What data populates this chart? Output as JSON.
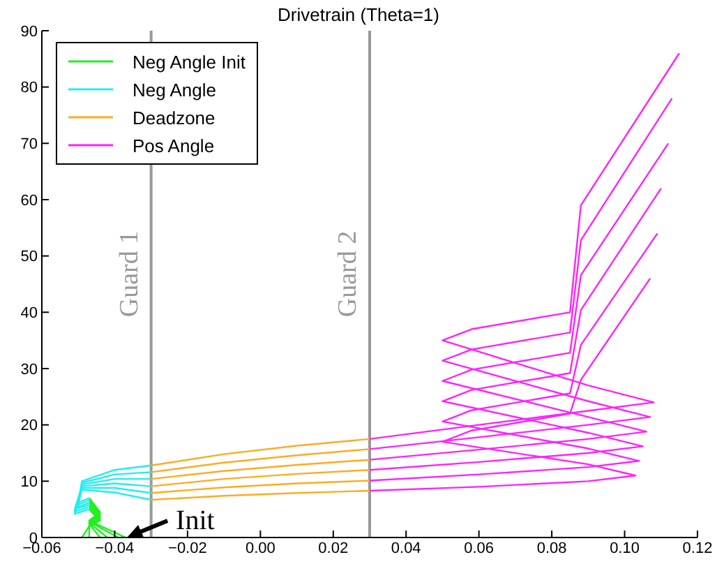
{
  "chart_data": {
    "type": "line",
    "title": "Drivetrain (Theta=1)",
    "xlim": [
      -0.06,
      0.12
    ],
    "xticks": [
      {
        "value": -0.06,
        "label": "−0.06"
      },
      {
        "value": -0.04,
        "label": "−0.04"
      },
      {
        "value": -0.02,
        "label": "−0.02"
      },
      {
        "value": 0,
        "label": "0.00"
      },
      {
        "value": 0.02,
        "label": "0.02"
      },
      {
        "value": 0.04,
        "label": "0.04"
      },
      {
        "value": 0.06,
        "label": "0.06"
      },
      {
        "value": 0.08,
        "label": "0.08"
      },
      {
        "value": 0.1,
        "label": "0.10"
      },
      {
        "value": 0.12,
        "label": "0.12"
      }
    ],
    "ylim": [
      0,
      90
    ],
    "yticks": [
      0,
      10,
      20,
      30,
      40,
      50,
      60,
      70,
      80,
      90
    ],
    "grid": false,
    "legend": "top left",
    "marker": "none",
    "line_style": "solid",
    "ref_lines": [
      {
        "axis": "x",
        "value": -0.03,
        "label": "Guard 1",
        "color": "#999999"
      },
      {
        "axis": "x",
        "value": 0.03,
        "label": "Guard 2",
        "color": "#999999"
      }
    ],
    "annotations": [
      {
        "text": "Init",
        "x": -0.037,
        "y": 0
      }
    ],
    "series": [
      {
        "name": "Neg Angle Init",
        "color": "#22ee22",
        "x": [
          -0.049,
          -0.047,
          -0.044,
          -0.047
        ],
        "values": [
          0,
          2,
          3,
          5
        ]
      },
      {
        "color": "#22ee22",
        "x": [
          -0.047,
          -0.047,
          -0.044,
          -0.047
        ],
        "values": [
          0,
          2.2,
          3.3,
          5.4
        ]
      },
      {
        "color": "#22ee22",
        "x": [
          -0.044,
          -0.047,
          -0.044,
          -0.047
        ],
        "values": [
          0,
          2.4,
          3.6,
          5.8
        ]
      },
      {
        "color": "#22ee22",
        "x": [
          -0.042,
          -0.047,
          -0.044,
          -0.047
        ],
        "values": [
          0,
          2.6,
          3.9,
          6.2
        ]
      },
      {
        "color": "#22ee22",
        "x": [
          -0.039,
          -0.047,
          -0.044,
          -0.047
        ],
        "values": [
          0,
          2.8,
          4.2,
          6.6
        ]
      },
      {
        "color": "#22ee22",
        "x": [
          -0.037,
          -0.047,
          -0.044,
          -0.047
        ],
        "values": [
          0,
          3,
          4.5,
          7
        ]
      },
      {
        "name": "Neg Angle",
        "color": "#22eeee",
        "x": [
          -0.047,
          -0.051,
          -0.049,
          -0.04,
          -0.03
        ],
        "values": [
          5,
          4.2,
          8.5,
          8,
          6.7
        ]
      },
      {
        "color": "#22eeee",
        "x": [
          -0.047,
          -0.051,
          -0.049,
          -0.04,
          -0.03
        ],
        "values": [
          5.4,
          4.6,
          8.8,
          8.8,
          7.9
        ]
      },
      {
        "color": "#22eeee",
        "x": [
          -0.047,
          -0.051,
          -0.049,
          -0.04,
          -0.03
        ],
        "values": [
          5.8,
          5,
          9.1,
          9.6,
          9.1
        ]
      },
      {
        "color": "#22eeee",
        "x": [
          -0.047,
          -0.05,
          -0.049,
          -0.04,
          -0.03
        ],
        "values": [
          6.2,
          5.4,
          9.4,
          10.4,
          10.4
        ]
      },
      {
        "color": "#22eeee",
        "x": [
          -0.047,
          -0.05,
          -0.049,
          -0.04,
          -0.03
        ],
        "values": [
          6.6,
          5.8,
          9.7,
          11.2,
          11.6
        ]
      },
      {
        "color": "#22eeee",
        "x": [
          -0.047,
          -0.05,
          -0.049,
          -0.04,
          -0.03
        ],
        "values": [
          7,
          6.2,
          10,
          12,
          12.8
        ]
      },
      {
        "name": "Deadzone",
        "color": "#ffaa22",
        "x": [
          -0.03,
          -0.01,
          0.01,
          0.03
        ],
        "values": [
          6.7,
          7.4,
          7.9,
          8.3
        ]
      },
      {
        "color": "#ffaa22",
        "x": [
          -0.03,
          -0.01,
          0.01,
          0.03
        ],
        "values": [
          7.9,
          8.9,
          9.6,
          10.1
        ]
      },
      {
        "color": "#ffaa22",
        "x": [
          -0.03,
          -0.01,
          0.01,
          0.03
        ],
        "values": [
          9.1,
          10.4,
          11.3,
          12
        ]
      },
      {
        "color": "#ffaa22",
        "x": [
          -0.03,
          -0.01,
          0.01,
          0.03
        ],
        "values": [
          10.4,
          11.8,
          12.9,
          13.8
        ]
      },
      {
        "color": "#ffaa22",
        "x": [
          -0.03,
          -0.01,
          0.01,
          0.03
        ],
        "values": [
          11.6,
          13.3,
          14.6,
          15.7
        ]
      },
      {
        "color": "#ffaa22",
        "x": [
          -0.03,
          -0.01,
          0.01,
          0.03
        ],
        "values": [
          12.8,
          14.8,
          16.3,
          17.5
        ]
      },
      {
        "name": "Pos Angle",
        "color": "#ff22ff",
        "x": [
          0.03,
          0.06,
          0.09,
          0.103,
          0.09,
          0.05,
          0.058,
          0.085,
          0.088,
          0.107
        ],
        "values": [
          8.3,
          9,
          10,
          11,
          13,
          17,
          19,
          22,
          28,
          46
        ]
      },
      {
        "color": "#ff22ff",
        "x": [
          0.03,
          0.06,
          0.09,
          0.104,
          0.09,
          0.05,
          0.058,
          0.085,
          0.088,
          0.109
        ],
        "values": [
          10.1,
          11.2,
          12.5,
          13.6,
          15.8,
          20.6,
          22.6,
          25.6,
          34.2,
          54
        ]
      },
      {
        "color": "#ff22ff",
        "x": [
          0.03,
          0.06,
          0.09,
          0.105,
          0.09,
          0.05,
          0.058,
          0.085,
          0.088,
          0.11
        ],
        "values": [
          12,
          13.4,
          15,
          16.2,
          18.6,
          24.2,
          26.2,
          29.2,
          40.4,
          62
        ]
      },
      {
        "color": "#ff22ff",
        "x": [
          0.03,
          0.06,
          0.09,
          0.106,
          0.09,
          0.05,
          0.058,
          0.085,
          0.088,
          0.112
        ],
        "values": [
          13.8,
          15.6,
          17.5,
          18.8,
          21.4,
          27.8,
          29.8,
          32.8,
          46.6,
          70
        ]
      },
      {
        "color": "#ff22ff",
        "x": [
          0.03,
          0.06,
          0.09,
          0.107,
          0.09,
          0.05,
          0.058,
          0.085,
          0.088,
          0.113
        ],
        "values": [
          15.7,
          17.8,
          20,
          21.4,
          24.2,
          31.4,
          33.4,
          36.4,
          52.8,
          78
        ]
      },
      {
        "color": "#ff22ff",
        "x": [
          0.03,
          0.06,
          0.09,
          0.108,
          0.09,
          0.05,
          0.058,
          0.085,
          0.088,
          0.115
        ],
        "values": [
          17.5,
          20,
          22.5,
          24,
          27,
          35,
          37,
          40,
          59,
          86
        ]
      }
    ]
  }
}
